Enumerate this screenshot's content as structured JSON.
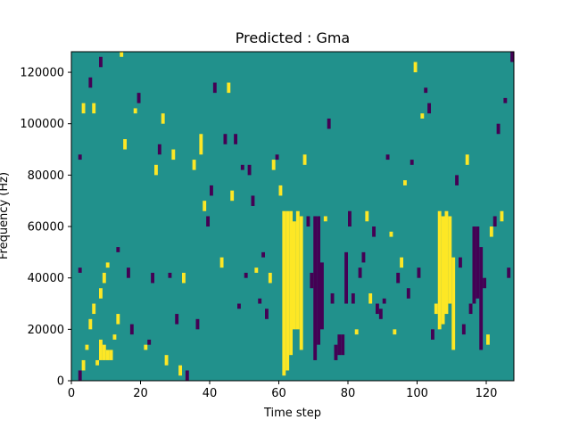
{
  "chart_data": {
    "type": "heatmap",
    "title": "Predicted : Gma",
    "xlabel": "Time step",
    "ylabel": "Frequency (Hz)",
    "xlim": [
      0,
      128
    ],
    "ylim": [
      0,
      128000
    ],
    "x_ticks": [
      0,
      20,
      40,
      60,
      80,
      100,
      120
    ],
    "y_ticks": [
      0,
      20000,
      40000,
      60000,
      80000,
      100000,
      120000
    ],
    "n_time_steps": 128,
    "n_freq_bins": 64,
    "freq_bin_hz": 2000,
    "colormap": "viridis",
    "value_levels": [
      -1,
      0,
      1
    ],
    "colors": {
      "-1": "#440154",
      "0": "#21918c",
      "1": "#fde725",
      "frame": "#000000"
    },
    "grid": false,
    "legend": "none",
    "background_value": 0,
    "cells": [
      {
        "t": 2,
        "f_start": 0,
        "f_end": 4000,
        "value": -1
      },
      {
        "t": 3,
        "f_start": 4000,
        "f_end": 8000,
        "value": 1
      },
      {
        "t": 4,
        "f_start": 12000,
        "f_end": 14000,
        "value": 1
      },
      {
        "t": 5,
        "f_start": 20000,
        "f_end": 24000,
        "value": 1
      },
      {
        "t": 6,
        "f_start": 26000,
        "f_end": 30000,
        "value": 1
      },
      {
        "t": 7,
        "f_start": 6000,
        "f_end": 8000,
        "value": 1
      },
      {
        "t": 8,
        "f_start": 8000,
        "f_end": 16000,
        "value": 1
      },
      {
        "t": 9,
        "f_start": 8000,
        "f_end": 14000,
        "value": 1
      },
      {
        "t": 10,
        "f_start": 8000,
        "f_end": 12000,
        "value": 1
      },
      {
        "t": 11,
        "f_start": 8000,
        "f_end": 12000,
        "value": 1
      },
      {
        "t": 12,
        "f_start": 16000,
        "f_end": 18000,
        "value": 1
      },
      {
        "t": 13,
        "f_start": 22000,
        "f_end": 26000,
        "value": 1
      },
      {
        "t": 8,
        "f_start": 32000,
        "f_end": 36000,
        "value": 1
      },
      {
        "t": 9,
        "f_start": 38000,
        "f_end": 42000,
        "value": 1
      },
      {
        "t": 10,
        "f_start": 44000,
        "f_end": 46000,
        "value": 1
      },
      {
        "t": 2,
        "f_start": 42000,
        "f_end": 44000,
        "value": -1
      },
      {
        "t": 3,
        "f_start": 104000,
        "f_end": 108000,
        "value": 1
      },
      {
        "t": 6,
        "f_start": 104000,
        "f_end": 108000,
        "value": 1
      },
      {
        "t": 5,
        "f_start": 114000,
        "f_end": 118000,
        "value": -1
      },
      {
        "t": 8,
        "f_start": 122000,
        "f_end": 126000,
        "value": -1
      },
      {
        "t": 2,
        "f_start": 86000,
        "f_end": 88000,
        "value": -1
      },
      {
        "t": 13,
        "f_start": 50000,
        "f_end": 52000,
        "value": -1
      },
      {
        "t": 14,
        "f_start": 128000,
        "f_end": 126000,
        "value": 1
      },
      {
        "t": 15,
        "f_start": 90000,
        "f_end": 94000,
        "value": 1
      },
      {
        "t": 16,
        "f_start": 40000,
        "f_end": 44000,
        "value": -1
      },
      {
        "t": 17,
        "f_start": 18000,
        "f_end": 22000,
        "value": -1
      },
      {
        "t": 18,
        "f_start": 104000,
        "f_end": 106000,
        "value": 1
      },
      {
        "t": 19,
        "f_start": 108000,
        "f_end": 112000,
        "value": -1
      },
      {
        "t": 21,
        "f_start": 12000,
        "f_end": 14000,
        "value": 1
      },
      {
        "t": 22,
        "f_start": 14000,
        "f_end": 16000,
        "value": -1
      },
      {
        "t": 23,
        "f_start": 38000,
        "f_end": 42000,
        "value": -1
      },
      {
        "t": 24,
        "f_start": 80000,
        "f_end": 84000,
        "value": 1
      },
      {
        "t": 25,
        "f_start": 88000,
        "f_end": 92000,
        "value": -1
      },
      {
        "t": 26,
        "f_start": 100000,
        "f_end": 104000,
        "value": 1
      },
      {
        "t": 27,
        "f_start": 6000,
        "f_end": 10000,
        "value": 1
      },
      {
        "t": 28,
        "f_start": 40000,
        "f_end": 42000,
        "value": -1
      },
      {
        "t": 29,
        "f_start": 86000,
        "f_end": 90000,
        "value": 1
      },
      {
        "t": 30,
        "f_start": 22000,
        "f_end": 26000,
        "value": -1
      },
      {
        "t": 31,
        "f_start": 2000,
        "f_end": 6000,
        "value": 1
      },
      {
        "t": 32,
        "f_start": 38000,
        "f_end": 42000,
        "value": 1
      },
      {
        "t": 33,
        "f_start": 0,
        "f_end": 4000,
        "value": -1
      },
      {
        "t": 35,
        "f_start": 82000,
        "f_end": 86000,
        "value": 1
      },
      {
        "t": 36,
        "f_start": 20000,
        "f_end": 24000,
        "value": -1
      },
      {
        "t": 37,
        "f_start": 88000,
        "f_end": 96000,
        "value": 1
      },
      {
        "t": 38,
        "f_start": 66000,
        "f_end": 70000,
        "value": 1
      },
      {
        "t": 39,
        "f_start": 60000,
        "f_end": 64000,
        "value": -1
      },
      {
        "t": 40,
        "f_start": 72000,
        "f_end": 76000,
        "value": -1
      },
      {
        "t": 41,
        "f_start": 112000,
        "f_end": 116000,
        "value": -1
      },
      {
        "t": 43,
        "f_start": 44000,
        "f_end": 48000,
        "value": 1
      },
      {
        "t": 44,
        "f_start": 92000,
        "f_end": 96000,
        "value": -1
      },
      {
        "t": 45,
        "f_start": 112000,
        "f_end": 116000,
        "value": 1
      },
      {
        "t": 46,
        "f_start": 70000,
        "f_end": 74000,
        "value": 1
      },
      {
        "t": 47,
        "f_start": 92000,
        "f_end": 96000,
        "value": -1
      },
      {
        "t": 48,
        "f_start": 28000,
        "f_end": 30000,
        "value": -1
      },
      {
        "t": 49,
        "f_start": 82000,
        "f_end": 84000,
        "value": -1
      },
      {
        "t": 50,
        "f_start": 40000,
        "f_end": 42000,
        "value": -1
      },
      {
        "t": 51,
        "f_start": 80000,
        "f_end": 84000,
        "value": -1
      },
      {
        "t": 52,
        "f_start": 68000,
        "f_end": 72000,
        "value": -1
      },
      {
        "t": 53,
        "f_start": 42000,
        "f_end": 44000,
        "value": 1
      },
      {
        "t": 54,
        "f_start": 30000,
        "f_end": 32000,
        "value": -1
      },
      {
        "t": 55,
        "f_start": 48000,
        "f_end": 50000,
        "value": -1
      },
      {
        "t": 56,
        "f_start": 24000,
        "f_end": 28000,
        "value": -1
      },
      {
        "t": 57,
        "f_start": 38000,
        "f_end": 42000,
        "value": 1
      },
      {
        "t": 58,
        "f_start": 82000,
        "f_end": 86000,
        "value": 1
      },
      {
        "t": 59,
        "f_start": 86000,
        "f_end": 88000,
        "value": -1
      },
      {
        "t": 60,
        "f_start": 72000,
        "f_end": 76000,
        "value": 1
      },
      {
        "t": 61,
        "f_start": 2000,
        "f_end": 66000,
        "value": 1
      },
      {
        "t": 62,
        "f_start": 4000,
        "f_end": 66000,
        "value": 1
      },
      {
        "t": 63,
        "f_start": 10000,
        "f_end": 66000,
        "value": 1
      },
      {
        "t": 64,
        "f_start": 20000,
        "f_end": 62000,
        "value": 1
      },
      {
        "t": 65,
        "f_start": 20000,
        "f_end": 66000,
        "value": 1
      },
      {
        "t": 66,
        "f_start": 12000,
        "f_end": 64000,
        "value": 1
      },
      {
        "t": 67,
        "f_start": 84000,
        "f_end": 88000,
        "value": 1
      },
      {
        "t": 68,
        "f_start": 60000,
        "f_end": 64000,
        "value": -1
      },
      {
        "t": 69,
        "f_start": 36000,
        "f_end": 42000,
        "value": -1
      },
      {
        "t": 70,
        "f_start": 8000,
        "f_end": 64000,
        "value": -1
      },
      {
        "t": 71,
        "f_start": 14000,
        "f_end": 64000,
        "value": -1
      },
      {
        "t": 72,
        "f_start": 20000,
        "f_end": 46000,
        "value": -1
      },
      {
        "t": 73,
        "f_start": 62000,
        "f_end": 64000,
        "value": 1
      },
      {
        "t": 74,
        "f_start": 98000,
        "f_end": 102000,
        "value": -1
      },
      {
        "t": 75,
        "f_start": 30000,
        "f_end": 34000,
        "value": -1
      },
      {
        "t": 76,
        "f_start": 8000,
        "f_end": 14000,
        "value": -1
      },
      {
        "t": 77,
        "f_start": 10000,
        "f_end": 18000,
        "value": -1
      },
      {
        "t": 78,
        "f_start": 10000,
        "f_end": 18000,
        "value": -1
      },
      {
        "t": 79,
        "f_start": 30000,
        "f_end": 50000,
        "value": -1
      },
      {
        "t": 80,
        "f_start": 60000,
        "f_end": 66000,
        "value": -1
      },
      {
        "t": 81,
        "f_start": 30000,
        "f_end": 34000,
        "value": -1
      },
      {
        "t": 82,
        "f_start": 18000,
        "f_end": 20000,
        "value": 1
      },
      {
        "t": 83,
        "f_start": 40000,
        "f_end": 44000,
        "value": -1
      },
      {
        "t": 84,
        "f_start": 46000,
        "f_end": 50000,
        "value": -1
      },
      {
        "t": 85,
        "f_start": 62000,
        "f_end": 66000,
        "value": 1
      },
      {
        "t": 86,
        "f_start": 30000,
        "f_end": 34000,
        "value": 1
      },
      {
        "t": 87,
        "f_start": 56000,
        "f_end": 60000,
        "value": -1
      },
      {
        "t": 88,
        "f_start": 26000,
        "f_end": 30000,
        "value": -1
      },
      {
        "t": 89,
        "f_start": 24000,
        "f_end": 28000,
        "value": -1
      },
      {
        "t": 90,
        "f_start": 30000,
        "f_end": 32000,
        "value": -1
      },
      {
        "t": 91,
        "f_start": 86000,
        "f_end": 88000,
        "value": -1
      },
      {
        "t": 92,
        "f_start": 56000,
        "f_end": 58000,
        "value": 1
      },
      {
        "t": 93,
        "f_start": 18000,
        "f_end": 20000,
        "value": 1
      },
      {
        "t": 94,
        "f_start": 38000,
        "f_end": 42000,
        "value": -1
      },
      {
        "t": 95,
        "f_start": 44000,
        "f_end": 48000,
        "value": 1
      },
      {
        "t": 96,
        "f_start": 76000,
        "f_end": 78000,
        "value": 1
      },
      {
        "t": 97,
        "f_start": 32000,
        "f_end": 36000,
        "value": -1
      },
      {
        "t": 98,
        "f_start": 84000,
        "f_end": 86000,
        "value": -1
      },
      {
        "t": 99,
        "f_start": 120000,
        "f_end": 124000,
        "value": 1
      },
      {
        "t": 100,
        "f_start": 40000,
        "f_end": 44000,
        "value": -1
      },
      {
        "t": 101,
        "f_start": 102000,
        "f_end": 104000,
        "value": 1
      },
      {
        "t": 102,
        "f_start": 112000,
        "f_end": 114000,
        "value": -1
      },
      {
        "t": 103,
        "f_start": 104000,
        "f_end": 108000,
        "value": -1
      },
      {
        "t": 104,
        "f_start": 16000,
        "f_end": 20000,
        "value": -1
      },
      {
        "t": 105,
        "f_start": 26000,
        "f_end": 30000,
        "value": 1
      },
      {
        "t": 106,
        "f_start": 20000,
        "f_end": 66000,
        "value": 1
      },
      {
        "t": 107,
        "f_start": 22000,
        "f_end": 64000,
        "value": 1
      },
      {
        "t": 108,
        "f_start": 26000,
        "f_end": 66000,
        "value": 1
      },
      {
        "t": 109,
        "f_start": 30000,
        "f_end": 64000,
        "value": 1
      },
      {
        "t": 110,
        "f_start": 12000,
        "f_end": 48000,
        "value": 1
      },
      {
        "t": 111,
        "f_start": 76000,
        "f_end": 80000,
        "value": -1
      },
      {
        "t": 112,
        "f_start": 44000,
        "f_end": 48000,
        "value": -1
      },
      {
        "t": 113,
        "f_start": 18000,
        "f_end": 22000,
        "value": -1
      },
      {
        "t": 114,
        "f_start": 84000,
        "f_end": 88000,
        "value": 1
      },
      {
        "t": 115,
        "f_start": 26000,
        "f_end": 30000,
        "value": -1
      },
      {
        "t": 116,
        "f_start": 30000,
        "f_end": 60000,
        "value": -1
      },
      {
        "t": 117,
        "f_start": 32000,
        "f_end": 60000,
        "value": -1
      },
      {
        "t": 118,
        "f_start": 12000,
        "f_end": 52000,
        "value": -1
      },
      {
        "t": 119,
        "f_start": 36000,
        "f_end": 40000,
        "value": -1
      },
      {
        "t": 120,
        "f_start": 14000,
        "f_end": 18000,
        "value": 1
      },
      {
        "t": 121,
        "f_start": 56000,
        "f_end": 60000,
        "value": 1
      },
      {
        "t": 122,
        "f_start": 60000,
        "f_end": 64000,
        "value": -1
      },
      {
        "t": 123,
        "f_start": 96000,
        "f_end": 100000,
        "value": -1
      },
      {
        "t": 124,
        "f_start": 62000,
        "f_end": 66000,
        "value": 1
      },
      {
        "t": 125,
        "f_start": 108000,
        "f_end": 110000,
        "value": -1
      },
      {
        "t": 126,
        "f_start": 40000,
        "f_end": 44000,
        "value": -1
      },
      {
        "t": 127,
        "f_start": 124000,
        "f_end": 128000,
        "value": -1
      }
    ]
  }
}
